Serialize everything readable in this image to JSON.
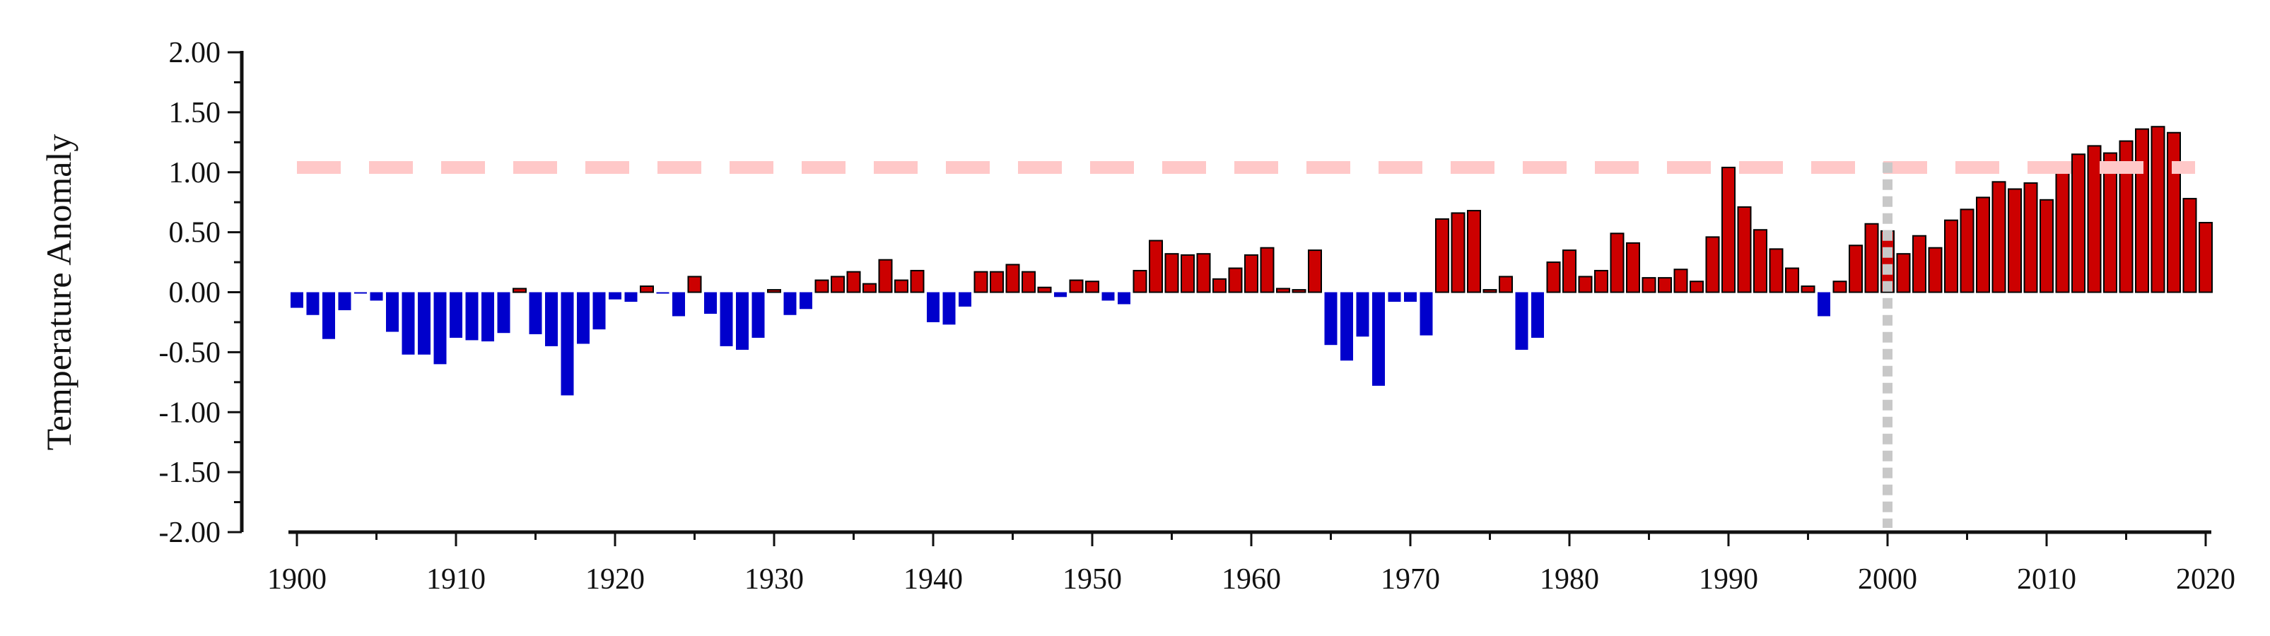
{
  "chart_data": {
    "type": "bar",
    "ylabel": "Temperature Anomaly",
    "xlabel": "",
    "ylim": [
      -2.0,
      2.0
    ],
    "xlim": [
      1900,
      2020
    ],
    "y_ticks": [
      2.0,
      1.5,
      1.0,
      0.5,
      0.0,
      -0.5,
      -1.0,
      -1.5,
      -2.0
    ],
    "y_tick_labels": [
      "2.00",
      "1.50",
      "1.00",
      "0.50",
      "0.00",
      "-0.50",
      "-1.00",
      "-1.50",
      "-2.00"
    ],
    "x_ticks": [
      1900,
      1910,
      1920,
      1930,
      1940,
      1950,
      1960,
      1970,
      1980,
      1990,
      2000,
      2010,
      2020
    ],
    "x_tick_labels": [
      "1900",
      "1910",
      "1920",
      "1930",
      "1940",
      "1950",
      "1960",
      "1970",
      "1980",
      "1990",
      "2000",
      "2010",
      "2020"
    ],
    "grid": false,
    "colors": {
      "positive": "#cc0000",
      "negative": "#0000cc",
      "threshold_line": "#ffc8c8",
      "marker_line": "#c8c8c8"
    },
    "reference_lines": [
      {
        "orientation": "horizontal",
        "value": 1.04,
        "style": "dashed",
        "color": "#ffc8c8"
      },
      {
        "orientation": "vertical",
        "value": 2000,
        "style": "dotted",
        "color": "#c8c8c8"
      }
    ],
    "years": [
      1900,
      1901,
      1902,
      1903,
      1904,
      1905,
      1906,
      1907,
      1908,
      1909,
      1910,
      1911,
      1912,
      1913,
      1914,
      1915,
      1916,
      1917,
      1918,
      1919,
      1920,
      1921,
      1922,
      1923,
      1924,
      1925,
      1926,
      1927,
      1928,
      1929,
      1930,
      1931,
      1932,
      1933,
      1934,
      1935,
      1936,
      1937,
      1938,
      1939,
      1940,
      1941,
      1942,
      1943,
      1944,
      1945,
      1946,
      1947,
      1948,
      1949,
      1950,
      1951,
      1952,
      1953,
      1954,
      1955,
      1956,
      1957,
      1958,
      1959,
      1960,
      1961,
      1962,
      1963,
      1964,
      1965,
      1966,
      1967,
      1968,
      1969,
      1970,
      1971,
      1972,
      1973,
      1974,
      1975,
      1976,
      1977,
      1978,
      1979,
      1980,
      1981,
      1982,
      1983,
      1984,
      1985,
      1986,
      1987,
      1988,
      1989,
      1990,
      1991,
      1992,
      1993,
      1994,
      1995,
      1996,
      1997,
      1998,
      1999,
      2000,
      2001,
      2002,
      2003,
      2004,
      2005,
      2006,
      2007,
      2008,
      2009,
      2010,
      2011,
      2012,
      2013,
      2014,
      2015,
      2016,
      2017,
      2018,
      2019,
      2020
    ],
    "values": [
      -0.13,
      -0.19,
      -0.39,
      -0.15,
      -0.01,
      -0.07,
      -0.33,
      -0.52,
      -0.52,
      -0.6,
      -0.38,
      -0.4,
      -0.41,
      -0.34,
      0.03,
      -0.35,
      -0.45,
      -0.86,
      -0.43,
      -0.31,
      -0.06,
      -0.08,
      0.05,
      -0.01,
      -0.2,
      0.13,
      -0.18,
      -0.45,
      -0.48,
      -0.38,
      0.02,
      -0.19,
      -0.14,
      0.1,
      0.13,
      0.17,
      0.07,
      0.27,
      0.1,
      0.18,
      -0.25,
      -0.27,
      -0.12,
      0.17,
      0.17,
      0.23,
      0.17,
      0.04,
      -0.04,
      0.1,
      0.09,
      -0.07,
      -0.1,
      0.18,
      0.43,
      0.32,
      0.31,
      0.32,
      0.11,
      0.2,
      0.31,
      0.37,
      0.03,
      0.02,
      0.35,
      -0.44,
      -0.57,
      -0.37,
      -0.78,
      -0.08,
      -0.08,
      -0.36,
      0.61,
      0.66,
      0.68,
      0.02,
      0.13,
      -0.48,
      -0.38,
      0.25,
      0.35,
      0.13,
      0.18,
      0.49,
      0.41,
      0.12,
      0.12,
      0.19,
      0.09,
      0.46,
      1.04,
      0.71,
      0.52,
      0.36,
      0.2,
      0.05,
      -0.2,
      0.09,
      0.39,
      0.57,
      0.51,
      0.32,
      0.47,
      0.37,
      0.6,
      0.69,
      0.79,
      0.92,
      0.86,
      0.91,
      0.77,
      1.05,
      1.15,
      1.22,
      1.16,
      1.26,
      1.36,
      1.38,
      1.33,
      0.78,
      0.58
    ]
  }
}
